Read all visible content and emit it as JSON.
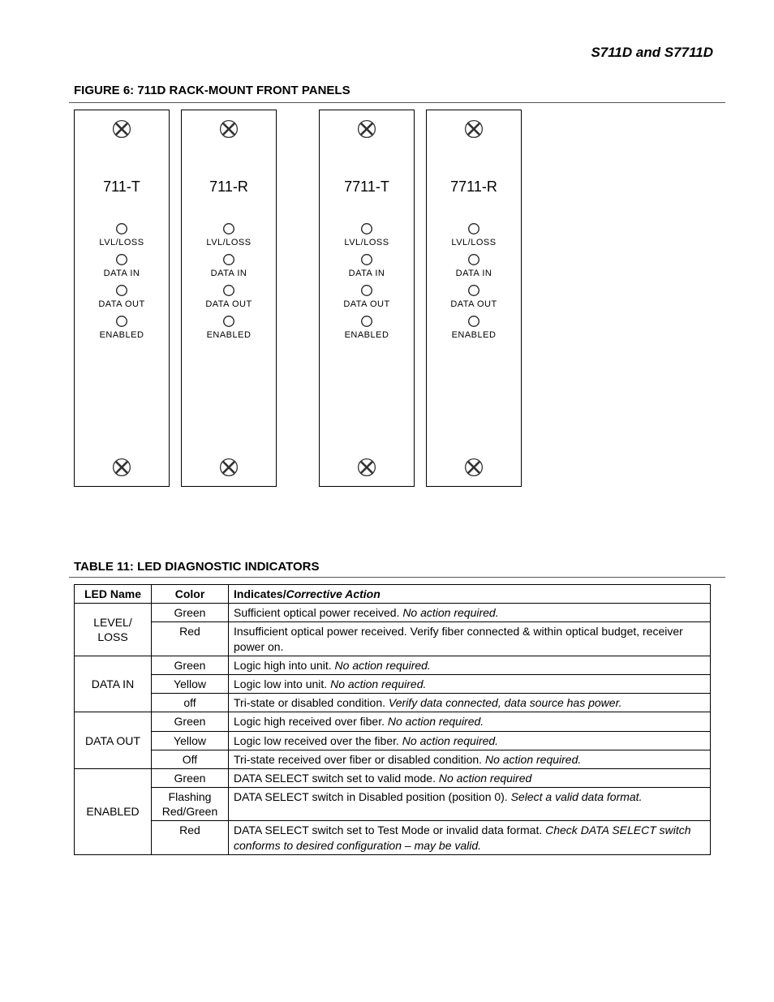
{
  "header": {
    "title": "S711D and S7711D"
  },
  "figure": {
    "title": "FIGURE 6: 711D RACK-MOUNT FRONT PANELS",
    "panels": [
      {
        "model": "711-T",
        "leds": [
          "LVL/LOSS",
          "DATA  IN",
          "DATA  OUT",
          "ENABLED"
        ]
      },
      {
        "model": "711-R",
        "leds": [
          "LVL/LOSS",
          "DATA  IN",
          "DATA  OUT",
          "ENABLED"
        ]
      },
      {
        "model": "7711-T",
        "leds": [
          "LVL/LOSS",
          "DATA  IN",
          "DATA  OUT",
          "ENABLED"
        ]
      },
      {
        "model": "7711-R",
        "leds": [
          "LVL/LOSS",
          "DATA  IN",
          "DATA  OUT",
          "ENABLED"
        ]
      }
    ],
    "screw_stroke": "#333333",
    "led_stroke": "#222222"
  },
  "table": {
    "title": "TABLE 11: LED DIAGNOSTIC INDICATORS",
    "columns": [
      "LED Name",
      "Color",
      "Indicates/Corrective Action"
    ],
    "groups": [
      {
        "name": "LEVEL/ LOSS",
        "rows": [
          {
            "color": "Green",
            "plain": "Sufficient optical power received.  ",
            "ital": "No action required."
          },
          {
            "color": "Red",
            "plain": "Insufficient optical power received. Verify fiber connected & within optical budget, receiver power on.",
            "ital": ""
          }
        ]
      },
      {
        "name": "DATA IN",
        "rows": [
          {
            "color": "Green",
            "plain": "Logic high into unit.  ",
            "ital": "No action required."
          },
          {
            "color": "Yellow",
            "plain": "Logic low into unit.  ",
            "ital": "No action required."
          },
          {
            "color": "off",
            "plain": "Tri-state or disabled condition.  ",
            "ital": "Verify data connected, data source has power."
          }
        ]
      },
      {
        "name": "DATA OUT",
        "rows": [
          {
            "color": "Green",
            "plain": "Logic high received over fiber. ",
            "ital": "No action required."
          },
          {
            "color": "Yellow",
            "plain": "Logic low received over the fiber. ",
            "ital": "No action required."
          },
          {
            "color": "Off",
            "plain": "Tri-state received over fiber or disabled condition. ",
            "ital": "No action required."
          }
        ]
      },
      {
        "name": "ENABLED",
        "rows": [
          {
            "color": "Green",
            "plain": "DATA SELECT switch set to valid mode. ",
            "ital": "No action required"
          },
          {
            "color": "Flashing Red/Green",
            "plain": "DATA SELECT switch in Disabled position (position 0). ",
            "ital": "Select a valid data format."
          },
          {
            "color": "Red",
            "plain": "DATA SELECT switch set to Test Mode or invalid data format.  ",
            "ital": "Check DATA SELECT switch conforms to desired configuration – may be valid."
          }
        ]
      }
    ]
  }
}
